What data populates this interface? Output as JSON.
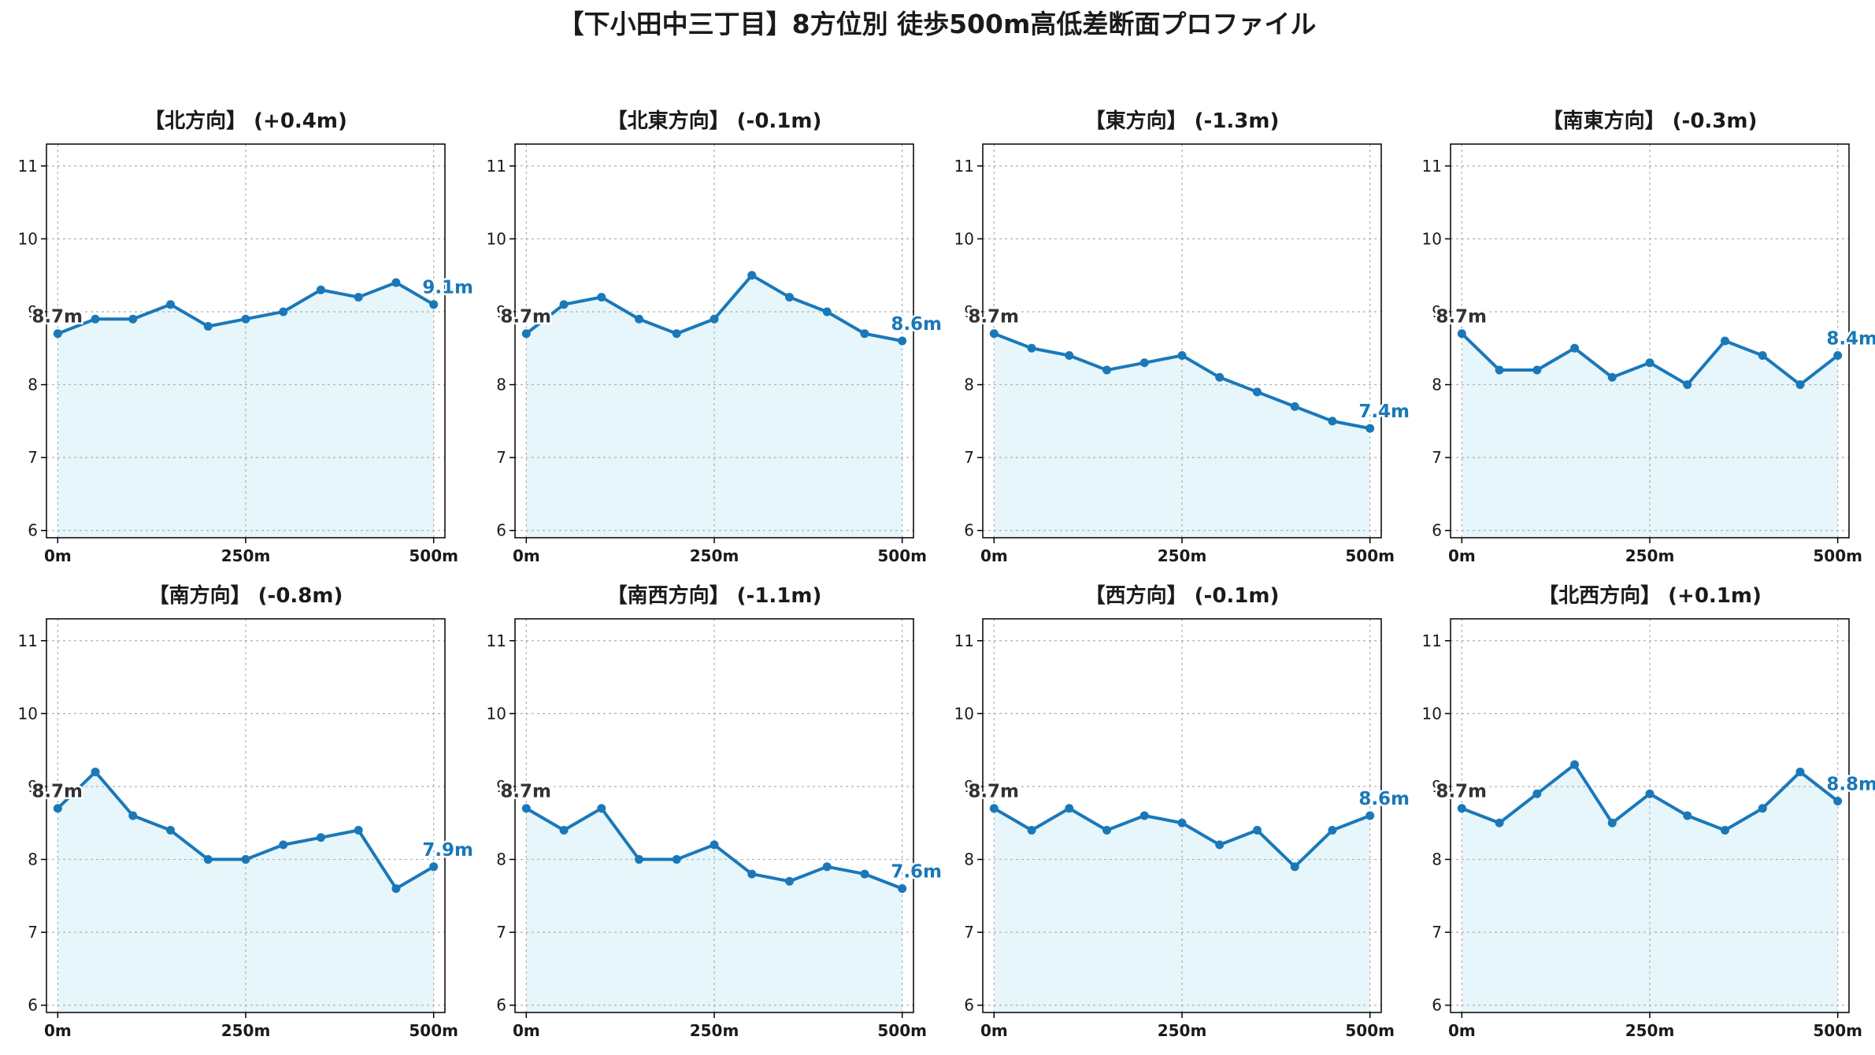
{
  "figure": {
    "title": "【下小田中三丁目】8方位別 徒歩500m高低差断面プロファイル"
  },
  "style": {
    "line_color": "#1a78b8",
    "fill_color": "#e6f6fb",
    "start_label_color": "#333333",
    "end_label_color": "#1a78b8",
    "grid_color": "#b0b0b0"
  },
  "chart_data": [
    {
      "type": "line",
      "title": "【北方向】 (+0.4m)",
      "x": [
        0,
        50,
        100,
        150,
        200,
        250,
        300,
        350,
        400,
        450,
        500
      ],
      "values": [
        8.7,
        8.9,
        8.9,
        9.1,
        8.8,
        8.9,
        9.0,
        9.3,
        9.2,
        9.4,
        9.1
      ],
      "xticks": [
        0,
        250,
        500
      ],
      "xtick_labels": [
        "0m",
        "250m",
        "500m"
      ],
      "yticks": [
        6,
        7,
        8,
        9,
        10,
        11
      ],
      "ylim": [
        5.9,
        11.3
      ],
      "xlim": [
        -15,
        515
      ],
      "start_label": "8.7m",
      "end_label": "9.1m",
      "grid": true
    },
    {
      "type": "line",
      "title": "【北東方向】 (-0.1m)",
      "x": [
        0,
        50,
        100,
        150,
        200,
        250,
        300,
        350,
        400,
        450,
        500
      ],
      "values": [
        8.7,
        9.1,
        9.2,
        8.9,
        8.7,
        8.9,
        9.5,
        9.2,
        9.0,
        8.7,
        8.6
      ],
      "xticks": [
        0,
        250,
        500
      ],
      "xtick_labels": [
        "0m",
        "250m",
        "500m"
      ],
      "yticks": [
        6,
        7,
        8,
        9,
        10,
        11
      ],
      "ylim": [
        5.9,
        11.3
      ],
      "xlim": [
        -15,
        515
      ],
      "start_label": "8.7m",
      "end_label": "8.6m",
      "grid": true
    },
    {
      "type": "line",
      "title": "【東方向】 (-1.3m)",
      "x": [
        0,
        50,
        100,
        150,
        200,
        250,
        300,
        350,
        400,
        450,
        500
      ],
      "values": [
        8.7,
        8.5,
        8.4,
        8.2,
        8.3,
        8.4,
        8.1,
        7.9,
        7.7,
        7.5,
        7.4
      ],
      "xticks": [
        0,
        250,
        500
      ],
      "xtick_labels": [
        "0m",
        "250m",
        "500m"
      ],
      "yticks": [
        6,
        7,
        8,
        9,
        10,
        11
      ],
      "ylim": [
        5.9,
        11.3
      ],
      "xlim": [
        -15,
        515
      ],
      "start_label": "8.7m",
      "end_label": "7.4m",
      "grid": true
    },
    {
      "type": "line",
      "title": "【南東方向】 (-0.3m)",
      "x": [
        0,
        50,
        100,
        150,
        200,
        250,
        300,
        350,
        400,
        450,
        500
      ],
      "values": [
        8.7,
        8.2,
        8.2,
        8.5,
        8.1,
        8.3,
        8.0,
        8.6,
        8.4,
        8.0,
        8.4
      ],
      "xticks": [
        0,
        250,
        500
      ],
      "xtick_labels": [
        "0m",
        "250m",
        "500m"
      ],
      "yticks": [
        6,
        7,
        8,
        9,
        10,
        11
      ],
      "ylim": [
        5.9,
        11.3
      ],
      "xlim": [
        -15,
        515
      ],
      "start_label": "8.7m",
      "end_label": "8.4m",
      "grid": true
    },
    {
      "type": "line",
      "title": "【南方向】 (-0.8m)",
      "x": [
        0,
        50,
        100,
        150,
        200,
        250,
        300,
        350,
        400,
        450,
        500
      ],
      "values": [
        8.7,
        9.2,
        8.6,
        8.4,
        8.0,
        8.0,
        8.2,
        8.3,
        8.4,
        7.6,
        7.9
      ],
      "xticks": [
        0,
        250,
        500
      ],
      "xtick_labels": [
        "0m",
        "250m",
        "500m"
      ],
      "yticks": [
        6,
        7,
        8,
        9,
        10,
        11
      ],
      "ylim": [
        5.9,
        11.3
      ],
      "xlim": [
        -15,
        515
      ],
      "start_label": "8.7m",
      "end_label": "7.9m",
      "grid": true
    },
    {
      "type": "line",
      "title": "【南西方向】 (-1.1m)",
      "x": [
        0,
        50,
        100,
        150,
        200,
        250,
        300,
        350,
        400,
        450,
        500
      ],
      "values": [
        8.7,
        8.4,
        8.7,
        8.0,
        8.0,
        8.2,
        7.8,
        7.7,
        7.9,
        7.8,
        7.6
      ],
      "xticks": [
        0,
        250,
        500
      ],
      "xtick_labels": [
        "0m",
        "250m",
        "500m"
      ],
      "yticks": [
        6,
        7,
        8,
        9,
        10,
        11
      ],
      "ylim": [
        5.9,
        11.3
      ],
      "xlim": [
        -15,
        515
      ],
      "start_label": "8.7m",
      "end_label": "7.6m",
      "grid": true
    },
    {
      "type": "line",
      "title": "【西方向】 (-0.1m)",
      "x": [
        0,
        50,
        100,
        150,
        200,
        250,
        300,
        350,
        400,
        450,
        500
      ],
      "values": [
        8.7,
        8.4,
        8.7,
        8.4,
        8.6,
        8.5,
        8.2,
        8.4,
        7.9,
        8.4,
        8.6
      ],
      "xticks": [
        0,
        250,
        500
      ],
      "xtick_labels": [
        "0m",
        "250m",
        "500m"
      ],
      "yticks": [
        6,
        7,
        8,
        9,
        10,
        11
      ],
      "ylim": [
        5.9,
        11.3
      ],
      "xlim": [
        -15,
        515
      ],
      "start_label": "8.7m",
      "end_label": "8.6m",
      "grid": true
    },
    {
      "type": "line",
      "title": "【北西方向】 (+0.1m)",
      "x": [
        0,
        50,
        100,
        150,
        200,
        250,
        300,
        350,
        400,
        450,
        500
      ],
      "values": [
        8.7,
        8.5,
        8.9,
        9.3,
        8.5,
        8.9,
        8.6,
        8.4,
        8.7,
        9.2,
        8.8
      ],
      "xticks": [
        0,
        250,
        500
      ],
      "xtick_labels": [
        "0m",
        "250m",
        "500m"
      ],
      "yticks": [
        6,
        7,
        8,
        9,
        10,
        11
      ],
      "ylim": [
        5.9,
        11.3
      ],
      "xlim": [
        -15,
        515
      ],
      "start_label": "8.7m",
      "end_label": "8.8m",
      "grid": true
    }
  ]
}
